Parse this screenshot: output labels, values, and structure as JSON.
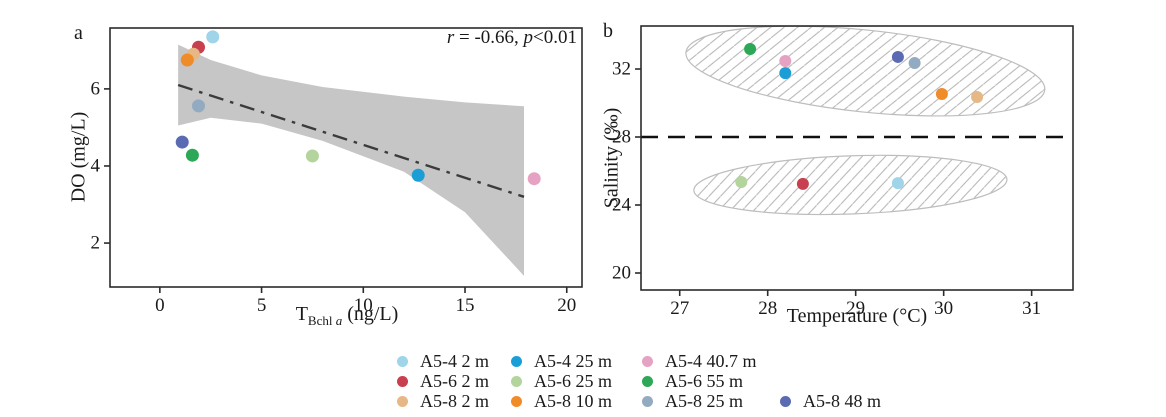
{
  "figure": {
    "panel_a": {
      "label": "a",
      "ylabel": "DO (mg/L)",
      "xlabel_parts": {
        "t": "T",
        "sub": "Bchl ",
        "sub_italic": "a",
        "unit": " (ng/L)"
      },
      "annotation_parts": {
        "r_sym": "r",
        "r_val": " = -0.66, ",
        "p_sym": "p",
        "p_val": "<0.01"
      }
    },
    "panel_b": {
      "label": "b",
      "xlabel": "Temperature (°C)",
      "ylabel": "Salinity (‰)"
    }
  },
  "colors": {
    "A5-4 2 m": "#9fd4e9",
    "A5-4 25 m": "#1b9ed6",
    "A5-4 40.7 m": "#e6a2c2",
    "A5-6 2 m": "#c8404f",
    "A5-6 25 m": "#b3d49c",
    "A5-6 55 m": "#2ca857",
    "A5-8 2 m": "#e6b885",
    "A5-8 10 m": "#f08b2a",
    "A5-8 25 m": "#93abc0",
    "A5-8 48 m": "#5a6bb3",
    "band_fill": "#c6c6c6",
    "trend_line": "#3b3b3b",
    "frame": "#2b2b2b",
    "hatch_line": "#b3b3b3",
    "ellipse_edge": "#bdbdbd",
    "dashed_line": "#111111"
  },
  "legend": {
    "rows": [
      {
        "items": [
          {
            "label": "A5-4 2 m"
          },
          {
            "label": "A5-4 25 m"
          },
          {
            "label": "A5-4 40.7 m"
          }
        ]
      },
      {
        "items": [
          {
            "label": "A5-6 2 m"
          },
          {
            "label": "A5-6 25 m"
          },
          {
            "label": "A5-6 55 m"
          }
        ]
      },
      {
        "items": [
          {
            "label": "A5-8 2 m"
          },
          {
            "label": "A5-8 10 m"
          },
          {
            "label": "A5-8 25 m"
          },
          {
            "label": "A5-8 48 m"
          }
        ]
      }
    ]
  },
  "chart_data": [
    {
      "id": "a",
      "type": "scatter",
      "title": "",
      "xlabel": "T_Bchl a (ng/L)",
      "ylabel": "DO (mg/L)",
      "xlim": [
        -2.45,
        20.75
      ],
      "ylim": [
        0.86,
        7.58
      ],
      "xticks": [
        0,
        5,
        10,
        15,
        20
      ],
      "yticks": [
        2,
        4,
        6
      ],
      "annotation": "r = -0.66, p<0.01",
      "points": [
        {
          "series": "A5-4 2 m",
          "x": 2.6,
          "y": 7.35
        },
        {
          "series": "A5-6 2 m",
          "x": 1.9,
          "y": 7.08
        },
        {
          "series": "A5-8 2 m",
          "x": 1.65,
          "y": 6.9
        },
        {
          "series": "A5-8 10 m",
          "x": 1.35,
          "y": 6.75
        },
        {
          "series": "A5-8 25 m",
          "x": 1.9,
          "y": 5.56
        },
        {
          "series": "A5-8 48 m",
          "x": 1.1,
          "y": 4.62
        },
        {
          "series": "A5-6 55 m",
          "x": 1.6,
          "y": 4.28
        },
        {
          "series": "A5-6 25 m",
          "x": 7.5,
          "y": 4.26
        },
        {
          "series": "A5-4 25 m",
          "x": 12.7,
          "y": 3.76
        },
        {
          "series": "A5-4 40.7 m",
          "x": 18.4,
          "y": 3.67
        }
      ],
      "regression_line": {
        "x1": 0.9,
        "y1": 6.1,
        "x2": 17.9,
        "y2": 3.2,
        "style": "dashdot"
      },
      "confidence_band": [
        [
          0.9,
          7.15,
          5.05
        ],
        [
          2.5,
          6.75,
          5.25
        ],
        [
          5.0,
          6.35,
          5.1
        ],
        [
          8.0,
          6.05,
          4.65
        ],
        [
          12.0,
          5.8,
          3.85
        ],
        [
          15.0,
          5.65,
          2.8
        ],
        [
          17.9,
          5.55,
          1.15
        ]
      ]
    },
    {
      "id": "b",
      "type": "scatter",
      "title": "",
      "xlabel": "Temperature (°C)",
      "ylabel": "Salinity (‰)",
      "xlim": [
        26.56,
        31.47
      ],
      "ylim": [
        19.0,
        34.53
      ],
      "xticks": [
        27,
        28,
        29,
        30,
        31
      ],
      "yticks": [
        20,
        24,
        28,
        32
      ],
      "dashed_hline": 28,
      "ellipses": [
        {
          "cx": 29.11,
          "cy": 31.88,
          "rx": 2.05,
          "ry": 2.41,
          "rotate_deg": 6
        },
        {
          "cx": 28.94,
          "cy": 25.18,
          "rx": 1.78,
          "ry": 1.71,
          "rotate_deg": -2
        }
      ],
      "points": [
        {
          "series": "A5-6 55 m",
          "x": 27.8,
          "y": 33.18
        },
        {
          "series": "A5-4 40.7 m",
          "x": 28.2,
          "y": 32.47
        },
        {
          "series": "A5-4 25 m",
          "x": 28.2,
          "y": 31.76
        },
        {
          "series": "A5-8 48 m",
          "x": 29.48,
          "y": 32.71
        },
        {
          "series": "A5-8 25 m",
          "x": 29.67,
          "y": 32.35
        },
        {
          "series": "A5-8 10 m",
          "x": 29.98,
          "y": 30.53
        },
        {
          "series": "A5-8 2 m",
          "x": 30.38,
          "y": 30.35
        },
        {
          "series": "A5-6 25 m",
          "x": 27.7,
          "y": 25.35
        },
        {
          "series": "A5-6 2 m",
          "x": 28.4,
          "y": 25.24
        },
        {
          "series": "A5-4 2 m",
          "x": 29.48,
          "y": 25.29
        }
      ]
    }
  ]
}
